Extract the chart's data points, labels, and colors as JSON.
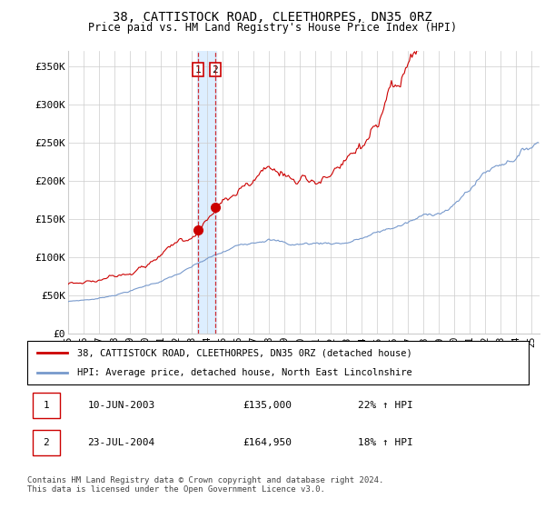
{
  "title": "38, CATTISTOCK ROAD, CLEETHORPES, DN35 0RZ",
  "subtitle": "Price paid vs. HM Land Registry's House Price Index (HPI)",
  "ylim": [
    0,
    370000
  ],
  "yticks": [
    0,
    50000,
    100000,
    150000,
    200000,
    250000,
    300000,
    350000
  ],
  "ytick_labels": [
    "£0",
    "£50K",
    "£100K",
    "£150K",
    "£200K",
    "£250K",
    "£300K",
    "£350K"
  ],
  "x_start_year": 1995,
  "x_end_year": 2025,
  "sale1_price": 135000,
  "sale2_price": 164950,
  "red_line_color": "#cc0000",
  "blue_line_color": "#7799cc",
  "vline_color": "#cc0000",
  "highlight_color": "#ddeeff",
  "legend1_label": "38, CATTISTOCK ROAD, CLEETHORPES, DN35 0RZ (detached house)",
  "legend2_label": "HPI: Average price, detached house, North East Lincolnshire",
  "footer": "Contains HM Land Registry data © Crown copyright and database right 2024.\nThis data is licensed under the Open Government Licence v3.0.",
  "bg_color": "#ffffff",
  "grid_color": "#cccccc",
  "label_box_color": "#cc0000"
}
